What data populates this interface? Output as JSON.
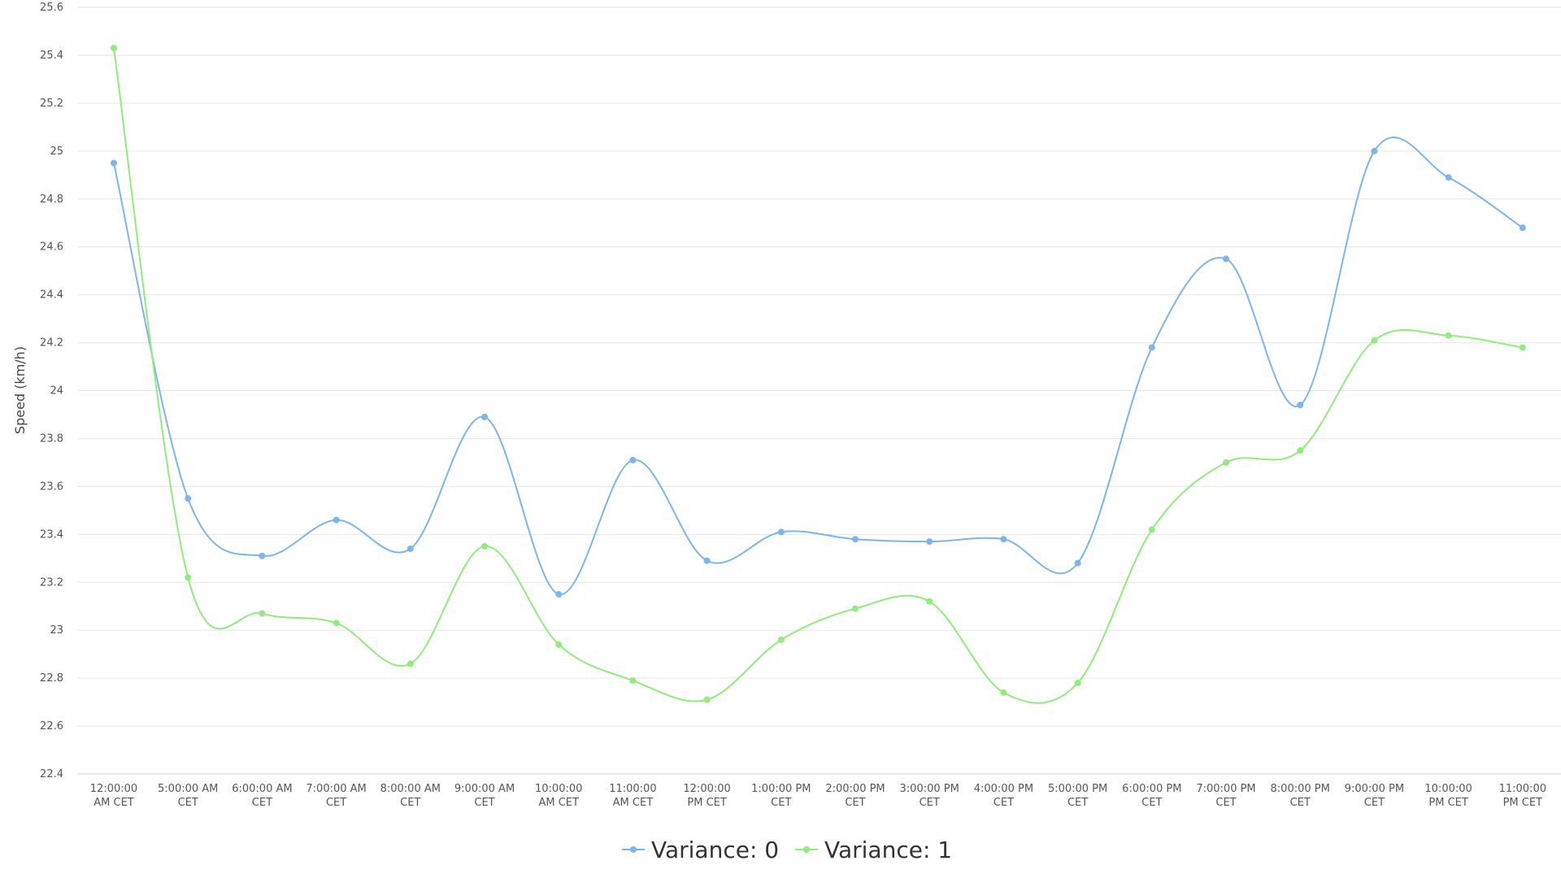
{
  "chart_data": {
    "type": "line",
    "title": "",
    "xlabel": "",
    "ylabel": "Speed (km/h)",
    "ylim": [
      22.4,
      25.6
    ],
    "yticks": [
      "22.4",
      "22.6",
      "22.8",
      "23",
      "23.2",
      "23.4",
      "23.6",
      "23.8",
      "24",
      "24.2",
      "24.4",
      "24.6",
      "24.8",
      "25",
      "25.2",
      "25.4",
      "25.6"
    ],
    "grid": true,
    "legend": "bottom-center",
    "categories": [
      "12:00:00 AM CET",
      "5:00:00 AM CET",
      "6:00:00 AM CET",
      "7:00:00 AM CET",
      "8:00:00 AM CET",
      "9:00:00 AM CET",
      "10:00:00 AM CET",
      "11:00:00 AM CET",
      "12:00:00 PM CET",
      "1:00:00 PM CET",
      "2:00:00 PM CET",
      "3:00:00 PM CET",
      "4:00:00 PM CET",
      "5:00:00 PM CET",
      "6:00:00 PM CET",
      "7:00:00 PM CET",
      "8:00:00 PM CET",
      "9:00:00 PM CET",
      "10:00:00 PM CET",
      "11:00:00 PM CET"
    ],
    "category_lines": [
      [
        "12:00:00",
        "AM CET"
      ],
      [
        "5:00:00 AM",
        "CET"
      ],
      [
        "6:00:00 AM",
        "CET"
      ],
      [
        "7:00:00 AM",
        "CET"
      ],
      [
        "8:00:00 AM",
        "CET"
      ],
      [
        "9:00:00 AM",
        "CET"
      ],
      [
        "10:00:00",
        "AM CET"
      ],
      [
        "11:00:00",
        "AM CET"
      ],
      [
        "12:00:00",
        "PM CET"
      ],
      [
        "1:00:00 PM",
        "CET"
      ],
      [
        "2:00:00 PM",
        "CET"
      ],
      [
        "3:00:00 PM",
        "CET"
      ],
      [
        "4:00:00 PM",
        "CET"
      ],
      [
        "5:00:00 PM",
        "CET"
      ],
      [
        "6:00:00 PM",
        "CET"
      ],
      [
        "7:00:00 PM",
        "CET"
      ],
      [
        "8:00:00 PM",
        "CET"
      ],
      [
        "9:00:00 PM",
        "CET"
      ],
      [
        "10:00:00",
        "PM CET"
      ],
      [
        "11:00:00",
        "PM CET"
      ]
    ],
    "series": [
      {
        "name": "Variance: 0",
        "color": "#7cb5ec",
        "values": [
          24.95,
          23.55,
          23.31,
          23.46,
          23.34,
          23.89,
          23.15,
          23.71,
          23.29,
          23.41,
          23.38,
          23.37,
          23.38,
          23.28,
          24.18,
          24.55,
          23.94,
          25.0,
          24.89,
          24.68
        ]
      },
      {
        "name": "Variance: 1",
        "color": "#90ed7d",
        "values": [
          25.43,
          23.22,
          23.07,
          23.03,
          22.86,
          23.35,
          22.94,
          22.79,
          22.71,
          22.96,
          23.09,
          23.12,
          22.74,
          22.78,
          23.42,
          23.7,
          23.75,
          24.21,
          24.23,
          24.18
        ]
      }
    ]
  },
  "colors": {
    "grid": "#e6e6e6",
    "axis": "#ccd6eb"
  }
}
